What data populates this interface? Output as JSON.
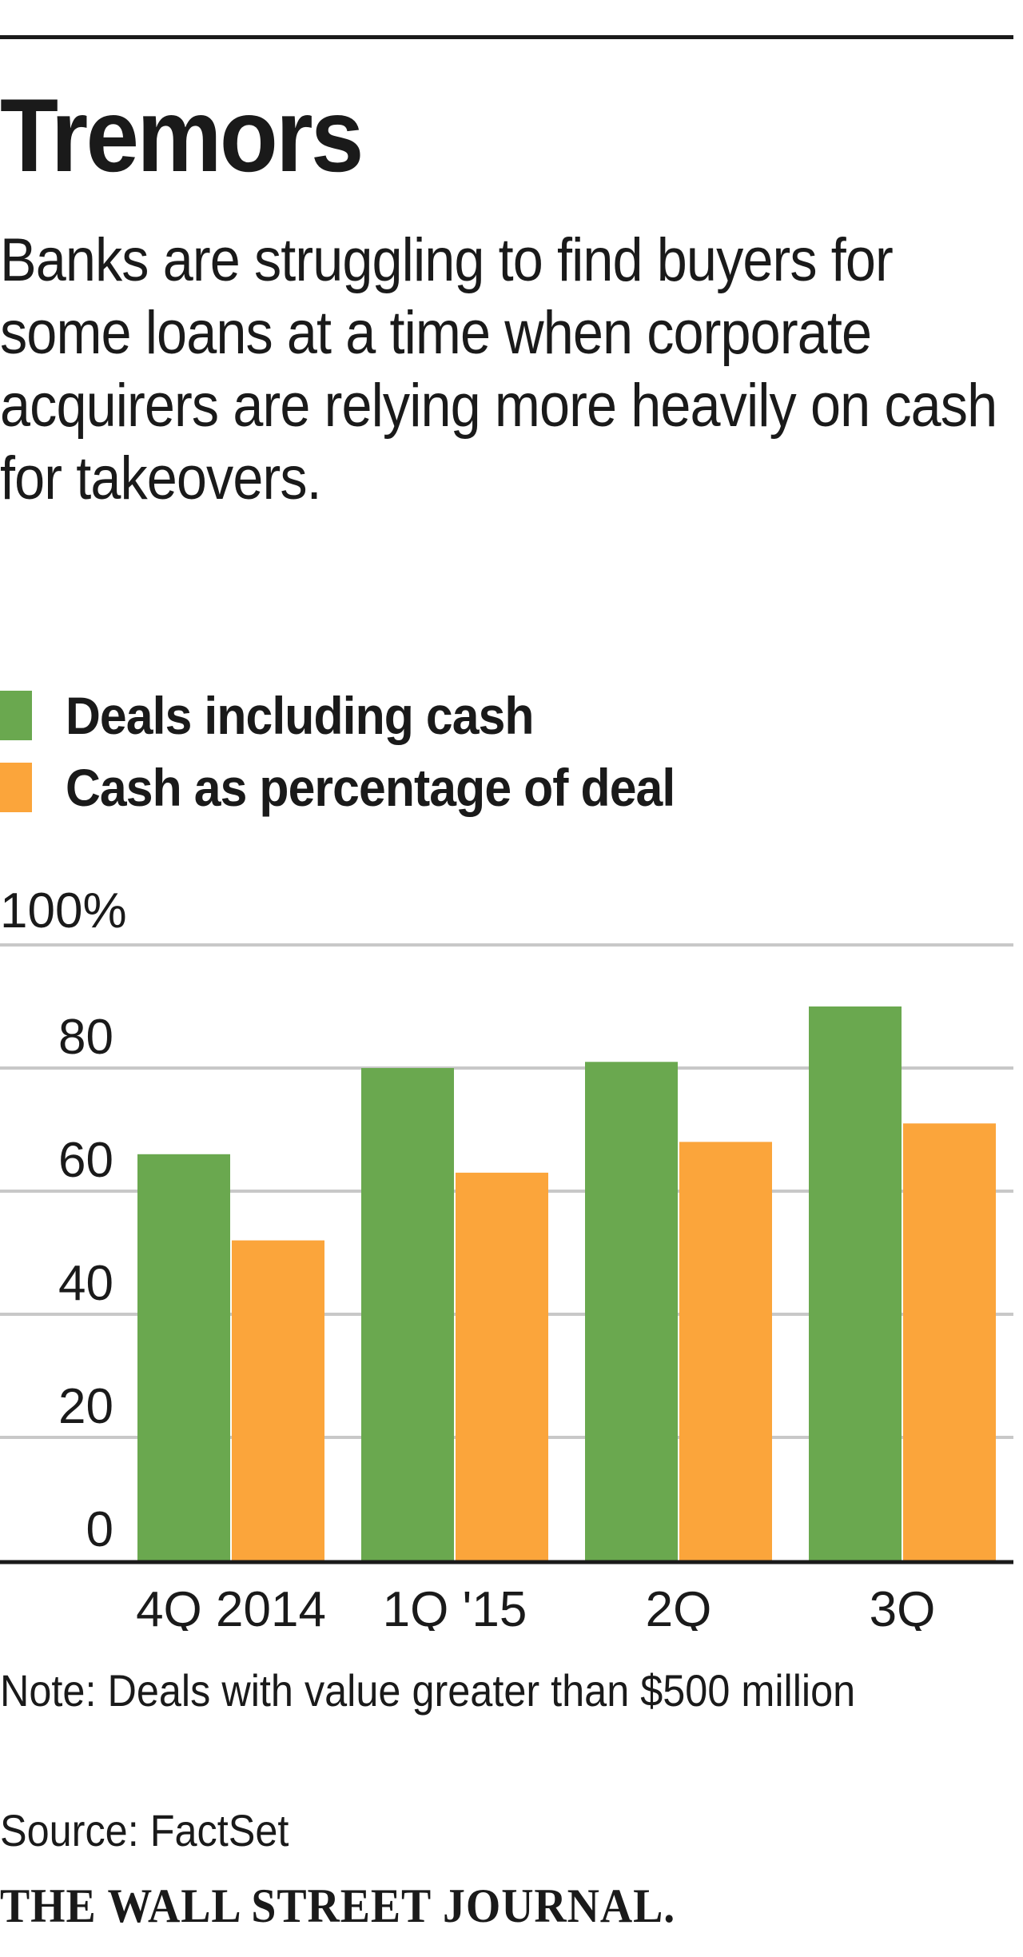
{
  "header": {
    "title": "Tremors",
    "subtitle": "Banks are struggling to find buyers for some loans at a time when corporate acquirers are relying more heavily on cash for takeovers."
  },
  "footer": {
    "note": "Note: Deals with value greater than $500 million",
    "source": "Source: FactSet",
    "publisher": "THE WALL STREET JOURNAL."
  },
  "colors": {
    "green": "#6aa84f",
    "orange": "#fba53b",
    "grid": "#c8c8c8",
    "text": "#1a1a1a"
  },
  "chart_data": {
    "type": "bar",
    "title": "Tremors",
    "xlabel": "",
    "ylabel": "",
    "ylim": [
      0,
      100
    ],
    "yticks": [
      "0",
      "20",
      "40",
      "60",
      "80",
      "100%"
    ],
    "grid": true,
    "legend_position": "top-left",
    "categories": [
      "4Q 2014",
      "1Q '15",
      "2Q",
      "3Q"
    ],
    "series": [
      {
        "name": "Deals including cash",
        "color": "#6aa84f",
        "values": [
          66,
          80,
          81,
          90
        ]
      },
      {
        "name": "Cash as percentage of deal",
        "color": "#fba53b",
        "values": [
          52,
          63,
          68,
          71
        ]
      }
    ]
  }
}
